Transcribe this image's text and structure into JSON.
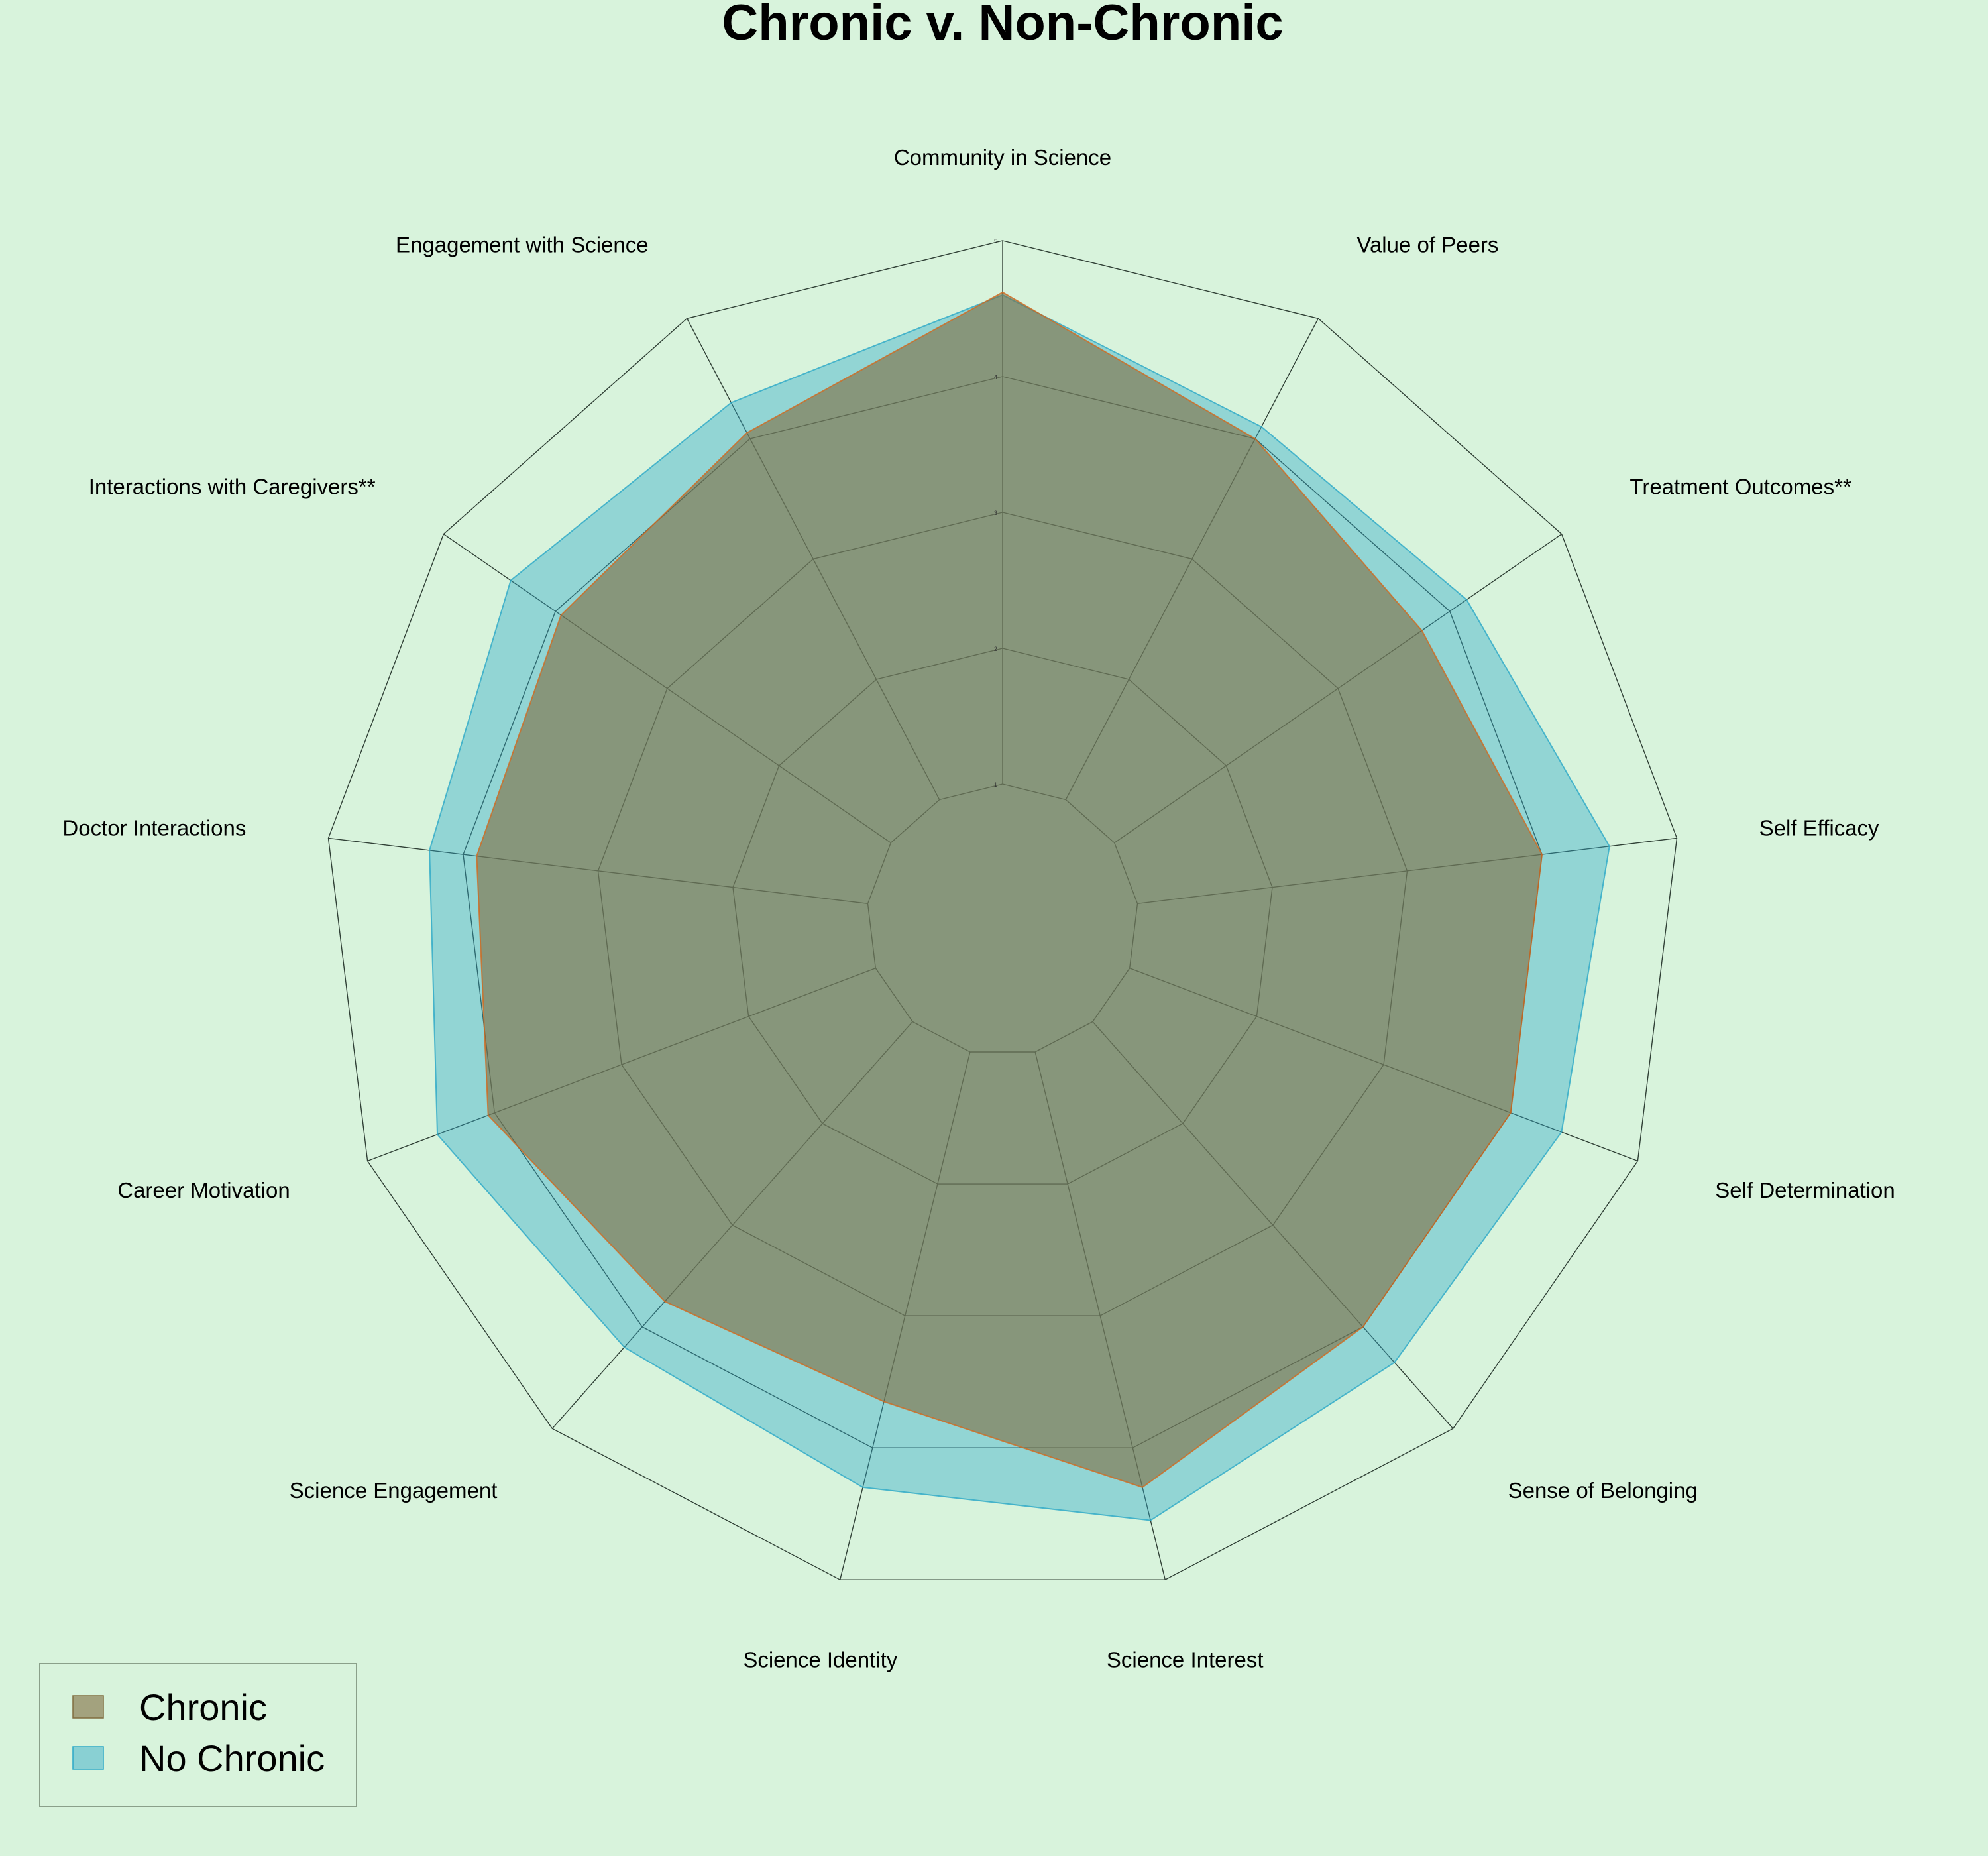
{
  "chart_data": {
    "type": "radar",
    "title": "Chronic v. Non-Chronic",
    "axes": [
      "Community in Science",
      "Value of Peers",
      "Treatment Outcomes**",
      "Self Efficacy",
      "Self Determination",
      "Sense of Belonging",
      "Science Interest",
      "Science Identity",
      "Science Engagement",
      "Career Motivation",
      "Doctor Interactions",
      "Interactions with Caregivers**",
      "Engagement with Science"
    ],
    "rlim": [
      1,
      5
    ],
    "rticks": [
      1,
      2,
      3,
      4,
      5
    ],
    "rtick_labels": [
      "1",
      "2",
      "3",
      "4",
      "5"
    ],
    "legend_position": "bottom-left",
    "series": [
      {
        "name": "No Chronic",
        "color": "#2aa7c7",
        "fill_opacity": 0.4,
        "values": [
          4.6,
          4.1,
          4.15,
          4.5,
          4.4,
          4.35,
          4.55,
          4.3,
          4.2,
          4.45,
          4.25,
          4.4,
          4.3
        ]
      },
      {
        "name": "Chronic",
        "color": "#806c3f",
        "edge_color": "#d2691e",
        "fill_opacity": 0.6,
        "values": [
          4.62,
          4.0,
          3.75,
          4.0,
          4.0,
          4.0,
          4.3,
          3.65,
          3.75,
          4.05,
          3.9,
          3.95,
          4.05
        ]
      }
    ]
  }
}
